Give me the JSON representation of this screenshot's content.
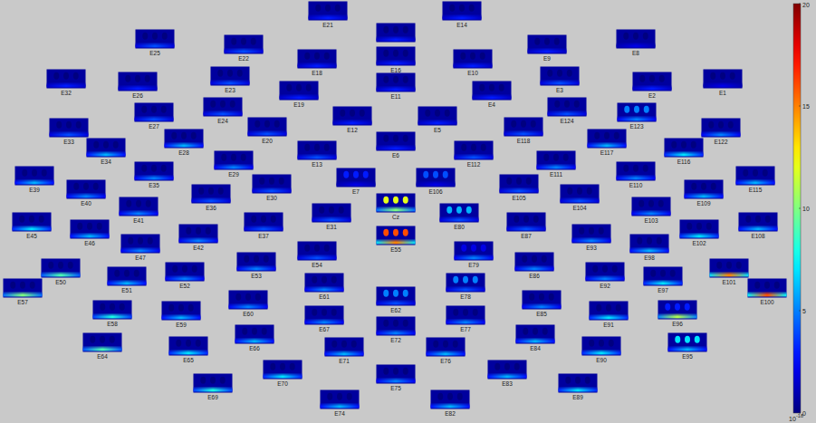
{
  "chart_data": {
    "type": "topoplot",
    "electrodes": [
      {
        "label": "E21",
        "band": 3,
        "blob": 0
      },
      {
        "label": "E14",
        "band": 3,
        "blob": 0
      },
      {
        "label": "E25",
        "band": 4,
        "blob": 0
      },
      {
        "label": "E22",
        "band": 4,
        "blob": 0
      },
      {
        "label": "E18",
        "band": 3,
        "blob": 0
      },
      {
        "label": null,
        "band": 3,
        "blob": 0
      },
      {
        "label": "E16",
        "band": 3,
        "blob": 0
      },
      {
        "label": "E10",
        "band": 3,
        "blob": 0
      },
      {
        "label": "E9",
        "band": 3,
        "blob": 0
      },
      {
        "label": "E8",
        "band": 2,
        "blob": 0
      },
      {
        "label": "E32",
        "band": 3,
        "blob": 0
      },
      {
        "label": "E26",
        "band": 3,
        "blob": 0
      },
      {
        "label": "E23",
        "band": 4,
        "blob": 0
      },
      {
        "label": "E19",
        "band": 3,
        "blob": 0
      },
      {
        "label": "E11",
        "band": 3,
        "blob": 0
      },
      {
        "label": "E4",
        "band": 3,
        "blob": 0
      },
      {
        "label": "E3",
        "band": 4,
        "blob": 0
      },
      {
        "label": "E2",
        "band": 3,
        "blob": 0
      },
      {
        "label": "E1",
        "band": 2,
        "blob": 0
      },
      {
        "label": "E27",
        "band": 4,
        "blob": 0
      },
      {
        "label": "E24",
        "band": 4,
        "blob": 0
      },
      {
        "label": "E12",
        "band": 3,
        "blob": 0
      },
      {
        "label": "E5",
        "band": 3,
        "blob": 0
      },
      {
        "label": "E124",
        "band": 4,
        "blob": 0
      },
      {
        "label": "E123",
        "band": 5,
        "blob": 5
      },
      {
        "label": "E33",
        "band": 4,
        "blob": 0
      },
      {
        "label": "E28",
        "band": 6,
        "blob": 0
      },
      {
        "label": "E20",
        "band": 4,
        "blob": 0
      },
      {
        "label": "E6",
        "band": 3,
        "blob": 0
      },
      {
        "label": "E118",
        "band": 4,
        "blob": 0
      },
      {
        "label": "E117",
        "band": 6,
        "blob": 0
      },
      {
        "label": "E122",
        "band": 5,
        "blob": 0
      },
      {
        "label": "E34",
        "band": 6,
        "blob": 0
      },
      {
        "label": "E116",
        "band": 7,
        "blob": 0
      },
      {
        "label": "E39",
        "band": 6,
        "blob": 0
      },
      {
        "label": "E35",
        "band": 5,
        "blob": 0
      },
      {
        "label": "E29",
        "band": 5,
        "blob": 0
      },
      {
        "label": "E13",
        "band": 4,
        "blob": 0
      },
      {
        "label": "E7",
        "band": 2,
        "blob": 3
      },
      {
        "label": "E106",
        "band": 2,
        "blob": 4
      },
      {
        "label": "E112",
        "band": 4,
        "blob": 0
      },
      {
        "label": "E111",
        "band": 5,
        "blob": 0
      },
      {
        "label": "E110",
        "band": 5,
        "blob": 0
      },
      {
        "label": "E115",
        "band": 6,
        "blob": 0
      },
      {
        "label": "E40",
        "band": 5,
        "blob": 0
      },
      {
        "label": "E36",
        "band": 4,
        "blob": 0
      },
      {
        "label": "E30",
        "band": 4,
        "blob": 0
      },
      {
        "label": "E105",
        "band": 4,
        "blob": 0
      },
      {
        "label": "E104",
        "band": 4,
        "blob": 0
      },
      {
        "label": "E109",
        "band": 6,
        "blob": 0
      },
      {
        "label": "E41",
        "band": 5,
        "blob": 0
      },
      {
        "label": "E31",
        "band": 4,
        "blob": 0
      },
      {
        "label": "Cz",
        "band": 10,
        "blob": 12
      },
      {
        "label": "E80",
        "band": 4,
        "blob": 6
      },
      {
        "label": "E103",
        "band": 5,
        "blob": 0
      },
      {
        "label": "E45",
        "band": 7,
        "blob": 0
      },
      {
        "label": "E46",
        "band": 6,
        "blob": 0
      },
      {
        "label": "E42",
        "band": 5,
        "blob": 0
      },
      {
        "label": "E37",
        "band": 4,
        "blob": 0
      },
      {
        "label": "E87",
        "band": 4,
        "blob": 0
      },
      {
        "label": "E93",
        "band": 5,
        "blob": 0
      },
      {
        "label": "E102",
        "band": 7,
        "blob": 0
      },
      {
        "label": "E108",
        "band": 6,
        "blob": 0
      },
      {
        "label": "E55",
        "band": 15,
        "blob": 16
      },
      {
        "label": "E47",
        "band": 5,
        "blob": 0
      },
      {
        "label": "E54",
        "band": 4,
        "blob": 0
      },
      {
        "label": "E79",
        "band": 5,
        "blob": 2
      },
      {
        "label": "E98",
        "band": 6,
        "blob": 0
      },
      {
        "label": "E50",
        "band": 9,
        "blob": 0
      },
      {
        "label": "E53",
        "band": 5,
        "blob": 0
      },
      {
        "label": "E86",
        "band": 5,
        "blob": 0
      },
      {
        "label": "E101",
        "band": 15,
        "blob": 0
      },
      {
        "label": "E57",
        "band": 10,
        "blob": 0
      },
      {
        "label": "E51",
        "band": 6,
        "blob": 0
      },
      {
        "label": "E52",
        "band": 5,
        "blob": 0
      },
      {
        "label": "E92",
        "band": 5,
        "blob": 0
      },
      {
        "label": "E97",
        "band": 7,
        "blob": 0
      },
      {
        "label": "E100",
        "band": 16,
        "blob": 0
      },
      {
        "label": "E61",
        "band": 5,
        "blob": 0
      },
      {
        "label": "E78",
        "band": 4,
        "blob": 5
      },
      {
        "label": "E60",
        "band": 5,
        "blob": 0
      },
      {
        "label": "E62",
        "band": 4,
        "blob": 5
      },
      {
        "label": "E85",
        "band": 5,
        "blob": 0
      },
      {
        "label": "E58",
        "band": 8,
        "blob": 0
      },
      {
        "label": "E59",
        "band": 6,
        "blob": 0
      },
      {
        "label": "E67",
        "band": 5,
        "blob": 0
      },
      {
        "label": "E77",
        "band": 5,
        "blob": 0
      },
      {
        "label": "E91",
        "band": 7,
        "blob": 0
      },
      {
        "label": "E96",
        "band": 11,
        "blob": 3
      },
      {
        "label": "E72",
        "band": 5,
        "blob": 0
      },
      {
        "label": "E66",
        "band": 6,
        "blob": 0
      },
      {
        "label": "E84",
        "band": 6,
        "blob": 0
      },
      {
        "label": "E71",
        "band": 6,
        "blob": 0
      },
      {
        "label": "E76",
        "band": 6,
        "blob": 0
      },
      {
        "label": "E64",
        "band": 9,
        "blob": 0
      },
      {
        "label": "E65",
        "band": 7,
        "blob": 0
      },
      {
        "label": "E90",
        "band": 7,
        "blob": 0
      },
      {
        "label": "E95",
        "band": 6,
        "blob": 7
      },
      {
        "label": "E70",
        "band": 7,
        "blob": 0
      },
      {
        "label": "E75",
        "band": 5,
        "blob": 0
      },
      {
        "label": "E83",
        "band": 6,
        "blob": 0
      },
      {
        "label": "E69",
        "band": 8,
        "blob": 0
      },
      {
        "label": "E89",
        "band": 7,
        "blob": 0
      },
      {
        "label": "E74",
        "band": 6,
        "blob": 0
      },
      {
        "label": "E82",
        "band": 6,
        "blob": 0
      }
    ],
    "colorbar": {
      "range": [
        0,
        20
      ],
      "ticks": [
        0,
        5,
        10,
        15,
        20
      ],
      "multiplier": "10",
      "multiplier_exponent": "-18"
    }
  }
}
